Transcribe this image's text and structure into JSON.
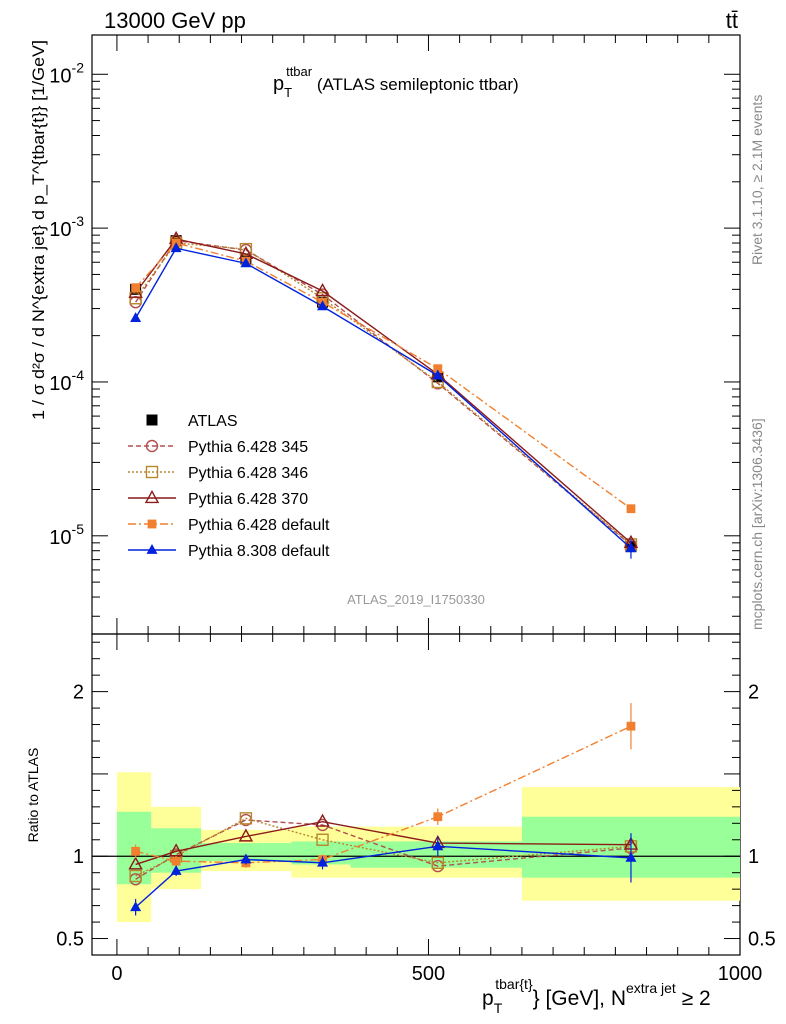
{
  "header": {
    "energy_label": "13000 GeV pp",
    "process_label": "tt̄"
  },
  "side_labels": {
    "rivet": "Rivet 3.1.10, ≥ 2.1M events",
    "mcplots": "mcplots.cern.ch [arXiv:1306.3436]"
  },
  "chart_data": [
    {
      "type": "line",
      "panel": "main",
      "title_main": "p",
      "title_sub": "T",
      "title_sup": "ttbar",
      "title_rest": " (ATLAS semileptonic ttbar)",
      "ylabel": "1 / σ d²σ / d N^{extra jet} d p_T^{tbar{t}} [1/GeV]",
      "analysis_label": "ATLAS_2019_I1750330",
      "yscale": "log",
      "ylim": [
        2.3e-06,
        0.018
      ],
      "xlim": [
        -40,
        1000
      ],
      "yticks": [
        {
          "v": 1e-05,
          "base": "10",
          "exp": "-5"
        },
        {
          "v": 0.0001,
          "base": "10",
          "exp": "-4"
        },
        {
          "v": 0.001,
          "base": "10",
          "exp": "-3"
        },
        {
          "v": 0.01,
          "base": "10",
          "exp": "-2"
        }
      ],
      "legend_position": "bottom-left",
      "x": [
        30,
        95,
        207,
        330,
        515,
        825
      ],
      "series": [
        {
          "name": "ATLAS",
          "color": "#000000",
          "marker": "square-filled",
          "dash": "none",
          "values": [
            0.0004,
            0.00083,
            0.00063,
            0.00033,
            0.000108,
            8.5e-06
          ],
          "yerr": [
            1.5e-05,
            2e-05,
            2e-05,
            1e-05,
            4e-06,
            7e-07
          ]
        },
        {
          "name": "Pythia 6.428 345",
          "color": "#b05050",
          "marker": "circle-open",
          "dash": "5,3",
          "values": [
            0.00033,
            0.00083,
            0.00072,
            0.00037,
            9.8e-05,
            8.7e-06
          ]
        },
        {
          "name": "Pythia 6.428 346",
          "color": "#b8862b",
          "marker": "square-open",
          "dash": "2,2",
          "values": [
            0.00035,
            0.0008,
            0.00073,
            0.00035,
            0.0001,
            8.8e-06
          ]
        },
        {
          "name": "Pythia 6.428 370",
          "color": "#8b1a1a",
          "marker": "triangle-open",
          "dash": "none",
          "values": [
            0.00038,
            0.00085,
            0.00068,
            0.00039,
            0.000112,
            9e-06
          ]
        },
        {
          "name": "Pythia 6.428 default",
          "color": "#f08030",
          "marker": "square-filled-small",
          "dash": "8,3,2,3",
          "values": [
            0.00041,
            0.0008,
            0.00061,
            0.00033,
            0.000122,
            1.5e-05
          ]
        },
        {
          "name": "Pythia 8.308 default",
          "color": "#0022dd",
          "marker": "triangle-filled",
          "dash": "none",
          "values": [
            0.00026,
            0.00074,
            0.00059,
            0.00031,
            0.00011,
            8.3e-06
          ],
          "yerr": [
            1e-05,
            2e-05,
            2e-05,
            1e-05,
            5e-06,
            1.2e-06
          ]
        }
      ]
    },
    {
      "type": "line",
      "panel": "ratio",
      "ylabel": "Ratio to ATLAS",
      "xlabel_main": "p",
      "xlabel_sub": "T",
      "xlabel_sup": "tbar{t}",
      "xlabel_rest": "} [GeV], N",
      "xlabel_sup2": "extra jet",
      "xlabel_end": " ≥ 2",
      "xlim": [
        -40,
        1000
      ],
      "ylim": [
        0.4,
        2.35
      ],
      "xticks": [
        {
          "v": 0,
          "label": "0"
        },
        {
          "v": 500,
          "label": "500"
        },
        {
          "v": 1000,
          "label": "1000"
        }
      ],
      "yticks": [
        {
          "v": 0.5,
          "label": "0.5"
        },
        {
          "v": 1,
          "label": "1"
        },
        {
          "v": 2,
          "label": "2"
        }
      ],
      "bands": [
        {
          "x0": 0,
          "x1": 55,
          "g_lo": 0.83,
          "g_hi": 1.27,
          "y_lo": 0.6,
          "y_hi": 1.51
        },
        {
          "x0": 55,
          "x1": 135,
          "g_lo": 0.9,
          "g_hi": 1.17,
          "y_lo": 0.8,
          "y_hi": 1.3
        },
        {
          "x0": 135,
          "x1": 235,
          "g_lo": 0.97,
          "g_hi": 1.08,
          "y_lo": 0.91,
          "y_hi": 1.16
        },
        {
          "x0": 235,
          "x1": 280,
          "g_lo": 0.97,
          "g_hi": 1.08,
          "y_lo": 0.91,
          "y_hi": 1.16
        },
        {
          "x0": 280,
          "x1": 375,
          "g_lo": 0.95,
          "g_hi": 1.09,
          "y_lo": 0.87,
          "y_hi": 1.18
        },
        {
          "x0": 375,
          "x1": 650,
          "g_lo": 0.93,
          "g_hi": 1.09,
          "y_lo": 0.87,
          "y_hi": 1.18
        },
        {
          "x0": 650,
          "x1": 1000,
          "g_lo": 0.87,
          "g_hi": 1.24,
          "y_lo": 0.73,
          "y_hi": 1.42
        }
      ],
      "x": [
        30,
        95,
        207,
        330,
        515,
        825
      ],
      "series": [
        {
          "name": "Pythia 6.428 345",
          "color": "#b05050",
          "marker": "circle-open",
          "dash": "5,3",
          "values": [
            0.86,
            1.01,
            1.22,
            1.19,
            0.94,
            1.05
          ]
        },
        {
          "name": "Pythia 6.428 346",
          "color": "#b8862b",
          "marker": "square-open",
          "dash": "2,2",
          "values": [
            0.88,
            1.0,
            1.23,
            1.1,
            0.96,
            1.06
          ]
        },
        {
          "name": "Pythia 6.428 370",
          "color": "#8b1a1a",
          "marker": "triangle-open",
          "dash": "none",
          "values": [
            0.95,
            1.03,
            1.12,
            1.21,
            1.08,
            1.07
          ]
        },
        {
          "name": "Pythia 6.428 default",
          "color": "#f08030",
          "marker": "square-filled-small",
          "dash": "8,3,2,3",
          "values": [
            1.03,
            0.97,
            0.96,
            0.98,
            1.24,
            1.79
          ],
          "yerr": [
            0.04,
            0.03,
            0.03,
            0.03,
            0.05,
            0.14
          ]
        },
        {
          "name": "Pythia 8.308 default",
          "color": "#0022dd",
          "marker": "triangle-filled",
          "dash": "none",
          "values": [
            0.69,
            0.91,
            0.98,
            0.96,
            1.06,
            0.99
          ],
          "yerr": [
            0.05,
            0.03,
            0.03,
            0.04,
            0.06,
            0.15
          ]
        }
      ]
    }
  ]
}
